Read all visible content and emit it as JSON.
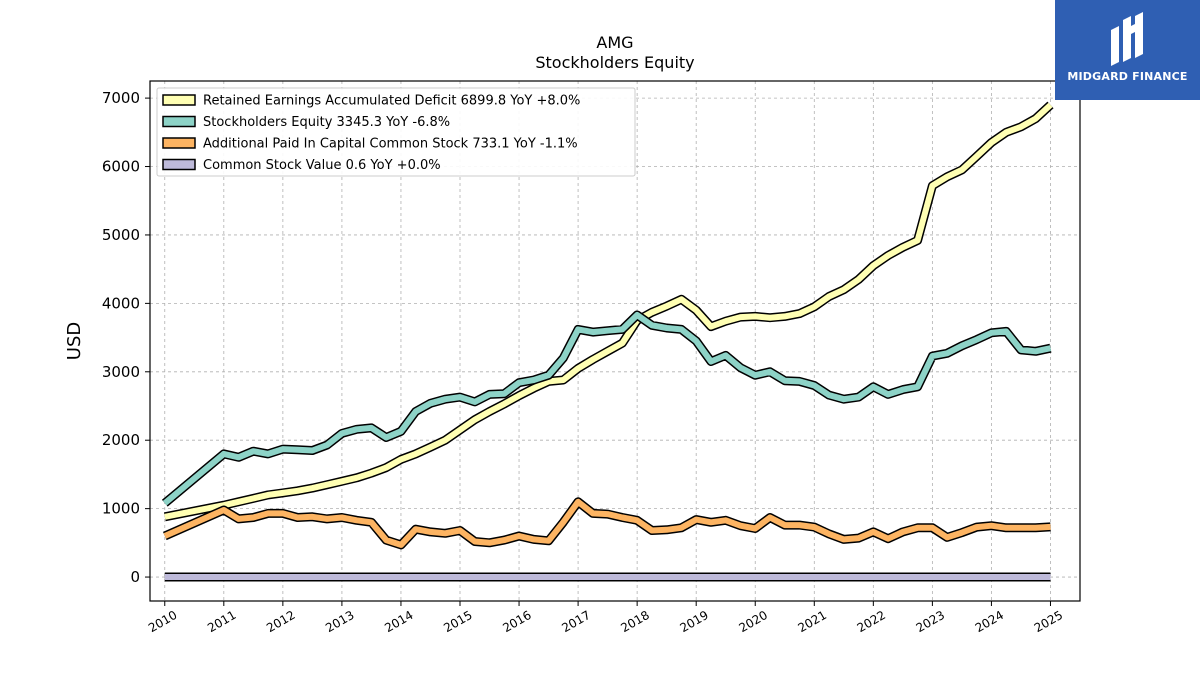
{
  "logo": {
    "text": "MIDGARD FINANCE",
    "bg_color": "#2f5fb3"
  },
  "chart_data": {
    "type": "line",
    "title": "AMG",
    "subtitle": "Stockholders  Equity",
    "ylabel": "USD",
    "xlabel": "",
    "xlim": [
      2009.75,
      2025.5
    ],
    "ylim": [
      -350,
      7250
    ],
    "yticks": [
      0,
      1000,
      2000,
      3000,
      4000,
      5000,
      6000,
      7000
    ],
    "xticks": [
      2010,
      2011,
      2012,
      2013,
      2014,
      2015,
      2016,
      2017,
      2018,
      2019,
      2020,
      2021,
      2022,
      2023,
      2024,
      2025
    ],
    "grid": true,
    "legend_position": "top-left",
    "series": [
      {
        "name": "Retained Earnings Accumulated Deficit  6899.8 YoY +8.0%",
        "color": "#ffffb3",
        "x": [
          2010.0,
          2011.0,
          2011.25,
          2011.5,
          2011.75,
          2012.0,
          2012.25,
          2012.5,
          2012.75,
          2013.0,
          2013.25,
          2013.5,
          2013.75,
          2014.0,
          2014.25,
          2014.5,
          2014.75,
          2015.0,
          2015.25,
          2015.5,
          2015.75,
          2016.0,
          2016.25,
          2016.5,
          2016.75,
          2017.0,
          2017.25,
          2017.5,
          2017.75,
          2018.0,
          2018.25,
          2018.5,
          2018.75,
          2019.0,
          2019.25,
          2019.5,
          2019.75,
          2020.0,
          2020.25,
          2020.5,
          2020.75,
          2021.0,
          2021.25,
          2021.5,
          2021.75,
          2022.0,
          2022.25,
          2022.5,
          2022.75,
          2023.0,
          2023.25,
          2023.5,
          2023.75,
          2024.0,
          2024.25,
          2024.5,
          2024.75,
          2025.0
        ],
        "values": [
          880,
          1050,
          1100,
          1150,
          1200,
          1230,
          1260,
          1300,
          1350,
          1400,
          1450,
          1520,
          1600,
          1720,
          1800,
          1900,
          2000,
          2150,
          2300,
          2420,
          2530,
          2650,
          2760,
          2860,
          2880,
          3050,
          3180,
          3300,
          3420,
          3750,
          3870,
          3960,
          4060,
          3900,
          3660,
          3740,
          3800,
          3810,
          3790,
          3810,
          3850,
          3950,
          4100,
          4200,
          4350,
          4550,
          4700,
          4820,
          4920,
          5720,
          5850,
          5950,
          6150,
          6350,
          6500,
          6580,
          6700,
          6900
        ]
      },
      {
        "name": "Stockholders Equity  3345.3 YoY -6.8%",
        "color": "#8dd3c7",
        "x": [
          2010.0,
          2011.0,
          2011.25,
          2011.5,
          2011.75,
          2012.0,
          2012.25,
          2012.5,
          2012.75,
          2013.0,
          2013.25,
          2013.5,
          2013.75,
          2014.0,
          2014.25,
          2014.5,
          2014.75,
          2015.0,
          2015.25,
          2015.5,
          2015.75,
          2016.0,
          2016.25,
          2016.5,
          2016.75,
          2017.0,
          2017.25,
          2017.5,
          2017.75,
          2018.0,
          2018.25,
          2018.5,
          2018.75,
          2019.0,
          2019.25,
          2019.5,
          2019.75,
          2020.0,
          2020.25,
          2020.5,
          2020.75,
          2021.0,
          2021.25,
          2021.5,
          2021.75,
          2022.0,
          2022.25,
          2022.5,
          2022.75,
          2023.0,
          2023.25,
          2023.5,
          2023.75,
          2024.0,
          2024.25,
          2024.5,
          2024.75,
          2025.0
        ],
        "values": [
          1080,
          1800,
          1750,
          1840,
          1800,
          1870,
          1860,
          1850,
          1930,
          2100,
          2160,
          2180,
          2040,
          2130,
          2420,
          2540,
          2600,
          2630,
          2560,
          2670,
          2680,
          2840,
          2880,
          2950,
          3200,
          3620,
          3580,
          3600,
          3620,
          3830,
          3680,
          3640,
          3620,
          3450,
          3150,
          3240,
          3060,
          2950,
          3000,
          2870,
          2860,
          2800,
          2660,
          2600,
          2630,
          2780,
          2670,
          2740,
          2780,
          3230,
          3270,
          3380,
          3470,
          3570,
          3590,
          3320,
          3300,
          3345
        ]
      },
      {
        "name": "Additional Paid In Capital Common Stock  733.1 YoY -1.1%",
        "color": "#fdb462",
        "x": [
          2010.0,
          2011.0,
          2011.25,
          2011.5,
          2011.75,
          2012.0,
          2012.25,
          2012.5,
          2012.75,
          2013.0,
          2013.25,
          2013.5,
          2013.75,
          2014.0,
          2014.25,
          2014.5,
          2014.75,
          2015.0,
          2015.25,
          2015.5,
          2015.75,
          2016.0,
          2016.25,
          2016.5,
          2016.75,
          2017.0,
          2017.25,
          2017.5,
          2017.75,
          2018.0,
          2018.25,
          2018.5,
          2018.75,
          2019.0,
          2019.25,
          2019.5,
          2019.75,
          2020.0,
          2020.25,
          2020.5,
          2020.75,
          2021.0,
          2021.25,
          2021.5,
          2021.75,
          2022.0,
          2022.25,
          2022.5,
          2022.75,
          2023.0,
          2023.25,
          2023.5,
          2023.75,
          2024.0,
          2024.25,
          2024.5,
          2024.75,
          2025.0
        ],
        "values": [
          600,
          980,
          850,
          870,
          930,
          930,
          870,
          880,
          850,
          870,
          830,
          800,
          540,
          470,
          700,
          660,
          640,
          680,
          520,
          500,
          540,
          600,
          550,
          530,
          800,
          1100,
          930,
          920,
          870,
          830,
          680,
          690,
          720,
          840,
          800,
          830,
          750,
          710,
          870,
          760,
          760,
          730,
          630,
          550,
          570,
          660,
          560,
          660,
          720,
          720,
          580,
          650,
          730,
          750,
          720,
          720,
          720,
          733
        ]
      },
      {
        "name": "Common Stock Value  0.6 YoY +0.0%",
        "color": "#bebada",
        "x": [
          2010.0,
          2025.0
        ],
        "values": [
          0.6,
          0.6
        ]
      }
    ]
  }
}
